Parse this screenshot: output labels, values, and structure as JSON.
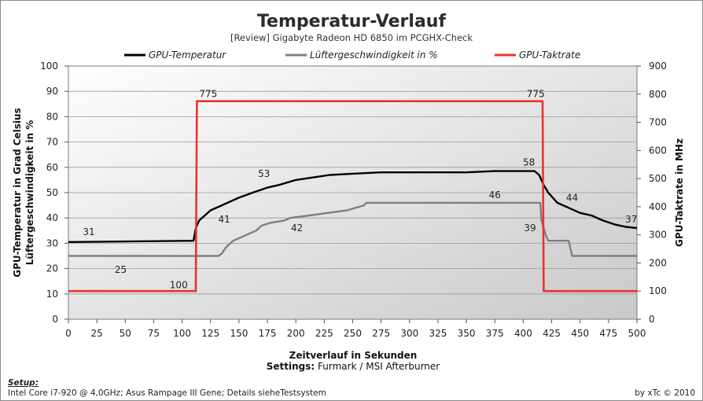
{
  "chart_data": {
    "type": "line",
    "title": "Temperatur-Verlauf",
    "subtitle": "[Review] Gigabyte  Radeon  HD  6850  im  PCGHX-Check",
    "xlabel": "Zeitverlauf in Sekunden",
    "settings_label": "Settings:",
    "settings_value": "Furmark / MSI Afterburner",
    "y_left_label_line1": "GPU-Temperatur  in Grad Celsius",
    "y_left_label_line2": "Lüftergeschwindigkeit  in %",
    "y_right_label": "GPU-Taktrate in MHz",
    "xlim": [
      0,
      500
    ],
    "y_left_lim": [
      0,
      100
    ],
    "y_right_lim": [
      0,
      900
    ],
    "x_ticks": [
      "0",
      "25",
      "50",
      "75",
      "100",
      "125",
      "150",
      "175",
      "200",
      "225",
      "250",
      "275",
      "300",
      "325",
      "350",
      "375",
      "400",
      "425",
      "450",
      "475",
      "500"
    ],
    "y_left_ticks": [
      "0",
      "10",
      "20",
      "30",
      "40",
      "50",
      "60",
      "70",
      "80",
      "90",
      "100"
    ],
    "y_right_ticks": [
      "0",
      "100",
      "200",
      "300",
      "400",
      "500",
      "600",
      "700",
      "800",
      "900"
    ],
    "legend_position": "top",
    "series": [
      {
        "name": "GPU-Temperatur",
        "axis": "left",
        "color": "#000000",
        "points": [
          [
            0,
            30.5
          ],
          [
            110,
            31
          ],
          [
            112,
            36
          ],
          [
            115,
            39
          ],
          [
            120,
            41
          ],
          [
            125,
            43
          ],
          [
            135,
            45
          ],
          [
            150,
            48
          ],
          [
            162,
            50
          ],
          [
            175,
            52
          ],
          [
            185,
            53
          ],
          [
            200,
            55
          ],
          [
            215,
            56
          ],
          [
            230,
            57
          ],
          [
            250,
            57.5
          ],
          [
            275,
            58
          ],
          [
            300,
            58
          ],
          [
            325,
            58
          ],
          [
            350,
            58
          ],
          [
            375,
            58.5
          ],
          [
            400,
            58.5
          ],
          [
            410,
            58.5
          ],
          [
            414,
            57
          ],
          [
            418,
            53
          ],
          [
            422,
            50
          ],
          [
            430,
            46
          ],
          [
            440,
            44
          ],
          [
            450,
            42
          ],
          [
            460,
            41
          ],
          [
            470,
            39
          ],
          [
            480,
            37.5
          ],
          [
            490,
            36.5
          ],
          [
            500,
            36
          ]
        ]
      },
      {
        "name": "Lüftergeschwindigkeit in %",
        "axis": "left",
        "color": "#808080",
        "points": [
          [
            0,
            25
          ],
          [
            132,
            25
          ],
          [
            135,
            26
          ],
          [
            138,
            28
          ],
          [
            140,
            29
          ],
          [
            145,
            31
          ],
          [
            150,
            32
          ],
          [
            155,
            33
          ],
          [
            160,
            34
          ],
          [
            165,
            35
          ],
          [
            170,
            37
          ],
          [
            177,
            38
          ],
          [
            190,
            39
          ],
          [
            195,
            40
          ],
          [
            212,
            41
          ],
          [
            228,
            42
          ],
          [
            245,
            43
          ],
          [
            260,
            45
          ],
          [
            262,
            46
          ],
          [
            415,
            46
          ],
          [
            416,
            39
          ],
          [
            420,
            33
          ],
          [
            422,
            31
          ],
          [
            440,
            31
          ],
          [
            443,
            25
          ],
          [
            500,
            25
          ]
        ]
      },
      {
        "name": "GPU-Taktrate",
        "axis": "right",
        "color": "#e8332e",
        "points": [
          [
            0,
            100
          ],
          [
            112,
            100
          ],
          [
            113,
            775
          ],
          [
            417,
            775
          ],
          [
            418,
            100
          ],
          [
            500,
            100
          ]
        ]
      }
    ],
    "annotations": [
      {
        "text": "31",
        "x": 18,
        "y": 34.5
      },
      {
        "text": "25",
        "x": 46,
        "y": 19.5
      },
      {
        "text": "100",
        "x": 97,
        "y": 13.5
      },
      {
        "text": "775",
        "x": 123,
        "y": 89
      },
      {
        "text": "41",
        "x": 137,
        "y": 39.5
      },
      {
        "text": "42",
        "x": 201,
        "y": 36
      },
      {
        "text": "53",
        "x": 172,
        "y": 57.5
      },
      {
        "text": "775",
        "x": 411,
        "y": 89
      },
      {
        "text": "58",
        "x": 405,
        "y": 62
      },
      {
        "text": "46",
        "x": 375,
        "y": 49
      },
      {
        "text": "39",
        "x": 406,
        "y": 36
      },
      {
        "text": "44",
        "x": 443,
        "y": 48
      },
      {
        "text": "37",
        "x": 495,
        "y": 39.5
      }
    ]
  },
  "footer": {
    "setup_label": "Setup:",
    "setup_text": "Intel Core i7-920 @ 4,0GHz; Asus Rampage III Gene; Details sieheTestsystem",
    "credit": "by xTc © 2010"
  }
}
